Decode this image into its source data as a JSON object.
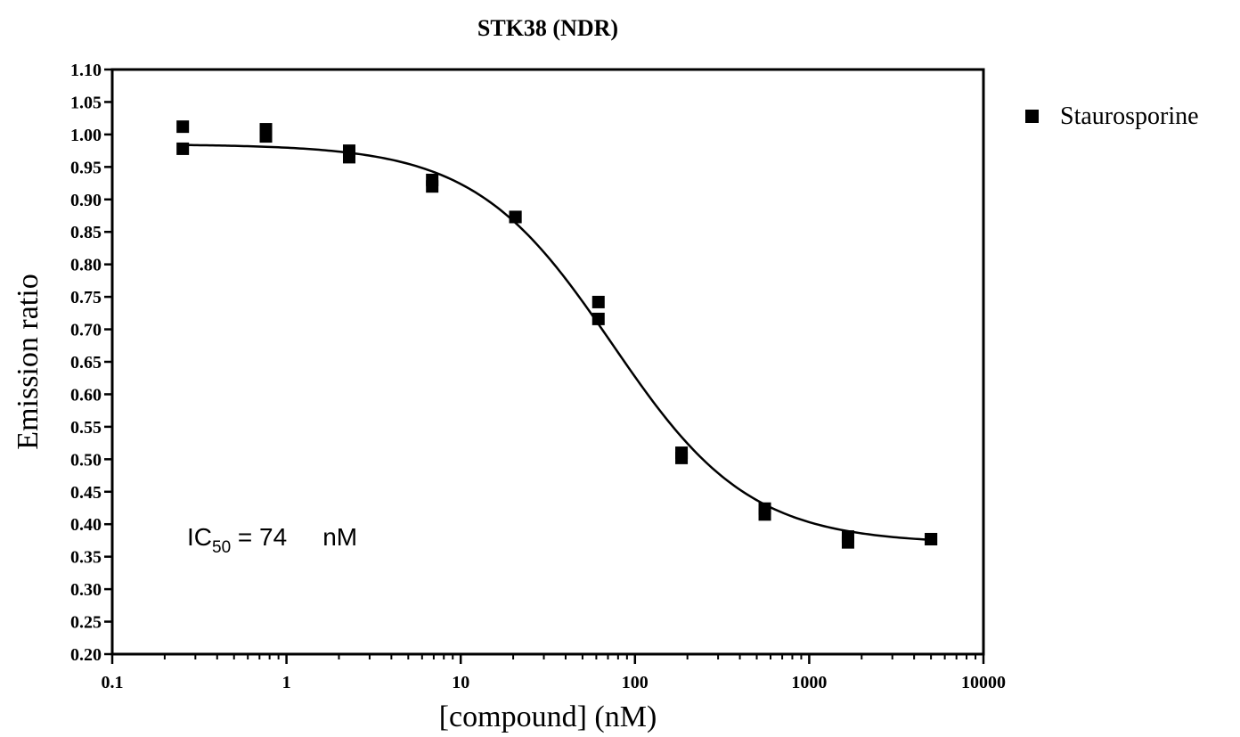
{
  "chart_data": {
    "type": "scatter",
    "title": "STK38 (NDR)",
    "xlabel": "[compound] (nM)",
    "ylabel": "Emission ratio",
    "xscale": "log",
    "xlim": [
      0.1,
      10000
    ],
    "ylim": [
      0.2,
      1.1
    ],
    "x_tick_labels": [
      "0.1",
      "1",
      "10",
      "100",
      "1000",
      "10000"
    ],
    "x_tick_values": [
      0.1,
      1,
      10,
      100,
      1000,
      10000
    ],
    "y_tick_labels": [
      "0.20",
      "0.25",
      "0.30",
      "0.35",
      "0.40",
      "0.45",
      "0.50",
      "0.55",
      "0.60",
      "0.65",
      "0.70",
      "0.75",
      "0.80",
      "0.85",
      "0.90",
      "0.95",
      "1.00",
      "1.05",
      "1.10"
    ],
    "y_tick_values": [
      0.2,
      0.25,
      0.3,
      0.35,
      0.4,
      0.45,
      0.5,
      0.55,
      0.6,
      0.65,
      0.7,
      0.75,
      0.8,
      0.85,
      0.9,
      0.95,
      1.0,
      1.05,
      1.1
    ],
    "grid": false,
    "legend_position": "top-right, outside plot",
    "series": [
      {
        "name": "Staurosporine",
        "marker": "square",
        "color": "#000000",
        "points": [
          {
            "x": 0.254,
            "y": 1.012
          },
          {
            "x": 0.254,
            "y": 0.978
          },
          {
            "x": 0.762,
            "y": 1.008
          },
          {
            "x": 0.762,
            "y": 0.997
          },
          {
            "x": 2.29,
            "y": 0.975
          },
          {
            "x": 2.29,
            "y": 0.965
          },
          {
            "x": 6.86,
            "y": 0.93
          },
          {
            "x": 6.86,
            "y": 0.92
          },
          {
            "x": 20.6,
            "y": 0.873
          },
          {
            "x": 20.6,
            "y": 0.873
          },
          {
            "x": 61.7,
            "y": 0.742
          },
          {
            "x": 61.7,
            "y": 0.716
          },
          {
            "x": 185,
            "y": 0.51
          },
          {
            "x": 185,
            "y": 0.502
          },
          {
            "x": 556,
            "y": 0.424
          },
          {
            "x": 556,
            "y": 0.415
          },
          {
            "x": 1670,
            "y": 0.381
          },
          {
            "x": 1670,
            "y": 0.372
          },
          {
            "x": 5000,
            "y": 0.377
          },
          {
            "x": 5000,
            "y": 0.377
          }
        ]
      }
    ],
    "fit_curve": {
      "model": "sigmoidal dose-response",
      "top": 0.985,
      "bottom": 0.37,
      "ic50": 74,
      "hill_slope": 1.1
    },
    "annotation": {
      "prefix": "IC",
      "subscript": "50",
      "equals_value": " = 74",
      "unit": "nM"
    }
  }
}
